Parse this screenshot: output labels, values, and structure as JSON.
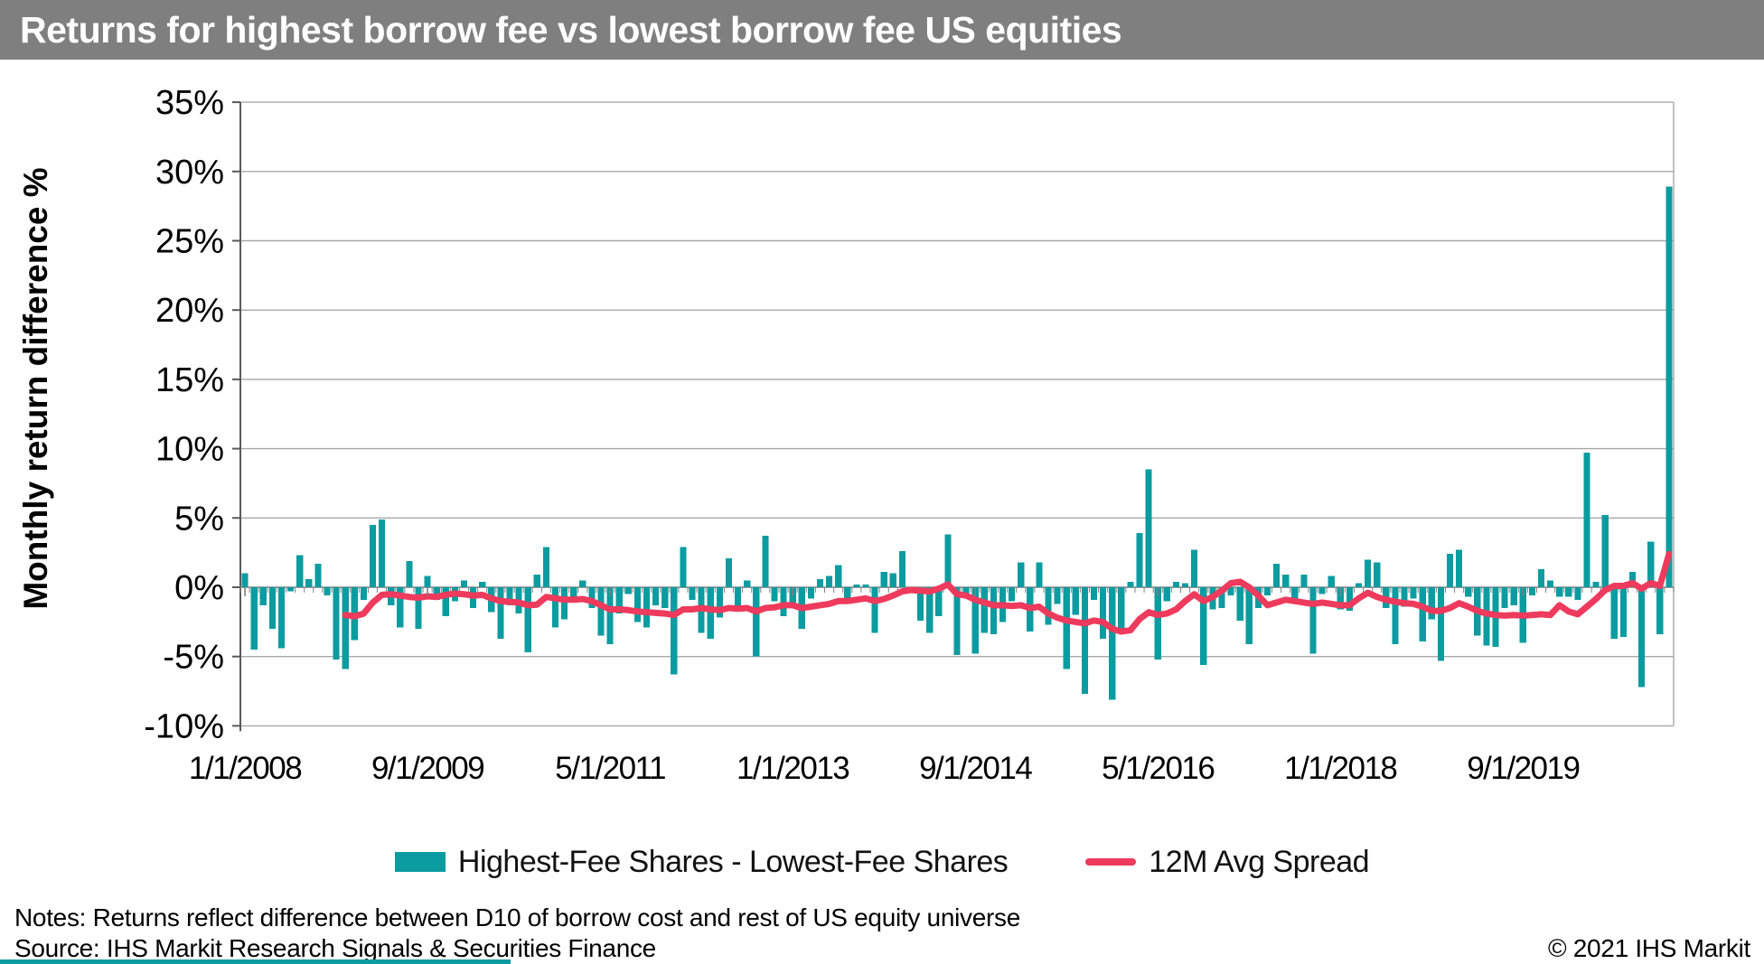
{
  "title": "Returns for highest borrow fee vs lowest borrow fee US equities",
  "title_bar_color": "#7F7F7F",
  "footer": {
    "notes": "Notes: Returns reflect difference between D10 of borrow cost and rest of US equity universe",
    "source": "Source: IHS Markit Research Signals & Securities Finance",
    "copyright": "© 2021 IHS Markit"
  },
  "chart_data": {
    "type": "bar",
    "title": "Returns for highest borrow fee vs lowest borrow fee US equities",
    "xlabel": "",
    "ylabel": "Monthly return difference %",
    "ylim": [
      -10,
      35
    ],
    "ytick_step": 5,
    "ytick_labels": [
      "35%",
      "30%",
      "25%",
      "20%",
      "15%",
      "10%",
      "5%",
      "0%",
      "-5%",
      "-10%"
    ],
    "grid": true,
    "legend_position": "bottom",
    "months_start": "1/1/2008",
    "months_end": "1/1/2021",
    "n_months": 157,
    "xtick_labels": [
      "1/1/2008",
      "9/1/2009",
      "5/1/2011",
      "1/1/2013",
      "9/1/2014",
      "5/1/2016",
      "1/1/2018",
      "9/1/2019"
    ],
    "xtick_month_indices": [
      0,
      20,
      40,
      60,
      80,
      100,
      120,
      140
    ],
    "colors": {
      "bar": "#0A9CA0",
      "line": "#EE3A5C",
      "grid": "#A8A8A8",
      "axis": "#595959",
      "zero_axis": "#808080"
    },
    "series": [
      {
        "name": "Highest-Fee Shares - Lowest-Fee Shares",
        "type": "bar",
        "start_index": 0,
        "values": [
          1.0,
          -4.5,
          -1.3,
          -3.0,
          -4.4,
          -0.3,
          2.3,
          0.6,
          1.7,
          -0.6,
          -5.2,
          -5.9,
          -3.8,
          -0.9,
          4.5,
          4.9,
          -1.3,
          -2.9,
          1.9,
          -3.0,
          0.8,
          -0.9,
          -2.1,
          -1.0,
          0.5,
          -1.5,
          0.4,
          -1.8,
          -3.7,
          -1.3,
          -1.9,
          -4.7,
          0.9,
          2.9,
          -2.9,
          -2.3,
          -0.9,
          0.5,
          -1.5,
          -3.5,
          -4.1,
          -1.9,
          -0.5,
          -2.5,
          -2.9,
          -1.3,
          -1.5,
          -6.3,
          2.9,
          -0.9,
          -3.3,
          -3.7,
          -2.2,
          2.1,
          -1.6,
          0.5,
          -5.0,
          3.7,
          -1.0,
          -2.1,
          -1.3,
          -3.0,
          -0.8,
          0.6,
          0.8,
          1.6,
          -0.9,
          0.2,
          0.2,
          -3.3,
          1.1,
          1.0,
          2.6,
          -0.4,
          -2.4,
          -3.3,
          -2.1,
          3.8,
          -4.9,
          -0.7,
          -4.8,
          -3.3,
          -3.4,
          -2.5,
          -1.0,
          1.8,
          -3.2,
          1.8,
          -2.7,
          -1.2,
          -5.9,
          -2.0,
          -7.7,
          -0.9,
          -3.7,
          -8.1,
          -3.2,
          0.4,
          3.9,
          8.5,
          -5.2,
          -1.0,
          0.4,
          0.3,
          2.7,
          -5.6,
          -1.6,
          -1.5,
          -0.6,
          -2.4,
          -4.1,
          -1.5,
          -0.6,
          1.7,
          0.9,
          -0.8,
          0.9,
          -4.8,
          -0.5,
          0.8,
          -1.6,
          -1.7,
          0.3,
          2.0,
          1.8,
          -1.5,
          -4.1,
          -1.4,
          -0.8,
          -3.9,
          -2.3,
          -5.3,
          2.4,
          2.7,
          -0.7,
          -3.5,
          -4.2,
          -4.3,
          -1.5,
          -1.3,
          -4.0,
          -0.6,
          1.3,
          0.5,
          -0.7,
          -0.7,
          -0.9,
          9.7,
          0.4,
          5.2,
          -3.7,
          -3.6,
          1.1,
          -7.2,
          3.3,
          -3.4,
          28.9
        ]
      },
      {
        "name": "12M Avg Spread",
        "type": "line",
        "start_index": 11,
        "values": [
          -2.0,
          -2.1,
          -1.9,
          -1.1,
          -0.55,
          -0.5,
          -0.6,
          -0.7,
          -0.75,
          -0.65,
          -0.7,
          -0.55,
          -0.45,
          -0.5,
          -0.6,
          -0.55,
          -0.8,
          -1.0,
          -1.05,
          -1.1,
          -1.3,
          -1.25,
          -0.7,
          -0.8,
          -0.9,
          -0.9,
          -0.85,
          -1.0,
          -1.3,
          -1.6,
          -1.6,
          -1.65,
          -1.75,
          -1.8,
          -1.85,
          -1.9,
          -2.0,
          -1.6,
          -1.6,
          -1.5,
          -1.6,
          -1.65,
          -1.5,
          -1.55,
          -1.5,
          -1.75,
          -1.5,
          -1.45,
          -1.3,
          -1.3,
          -1.5,
          -1.4,
          -1.3,
          -1.2,
          -1.0,
          -1.0,
          -0.9,
          -0.8,
          -1.0,
          -0.85,
          -0.6,
          -0.3,
          -0.2,
          -0.25,
          -0.3,
          -0.1,
          0.2,
          -0.5,
          -0.6,
          -0.9,
          -1.1,
          -1.3,
          -1.3,
          -1.35,
          -1.3,
          -1.5,
          -1.4,
          -1.9,
          -2.2,
          -2.4,
          -2.5,
          -2.6,
          -2.4,
          -2.5,
          -3.0,
          -3.2,
          -3.1,
          -2.3,
          -1.8,
          -2.0,
          -1.9,
          -1.6,
          -1.0,
          -0.5,
          -1.0,
          -0.7,
          -0.25,
          0.3,
          0.4,
          0.0,
          -0.6,
          -1.3,
          -1.1,
          -0.9,
          -1.0,
          -1.1,
          -1.2,
          -1.1,
          -1.2,
          -1.3,
          -1.3,
          -0.8,
          -0.4,
          -0.7,
          -0.9,
          -1.05,
          -1.15,
          -1.2,
          -1.4,
          -1.7,
          -1.7,
          -1.5,
          -1.15,
          -1.4,
          -1.7,
          -1.9,
          -2.0,
          -2.05,
          -2.0,
          -2.05,
          -2.0,
          -1.95,
          -2.0,
          -1.3,
          -1.75,
          -1.95,
          -1.4,
          -0.85,
          -0.2,
          0.1,
          0.1,
          0.3,
          -0.1,
          0.3,
          0.1,
          2.4
        ]
      }
    ]
  }
}
